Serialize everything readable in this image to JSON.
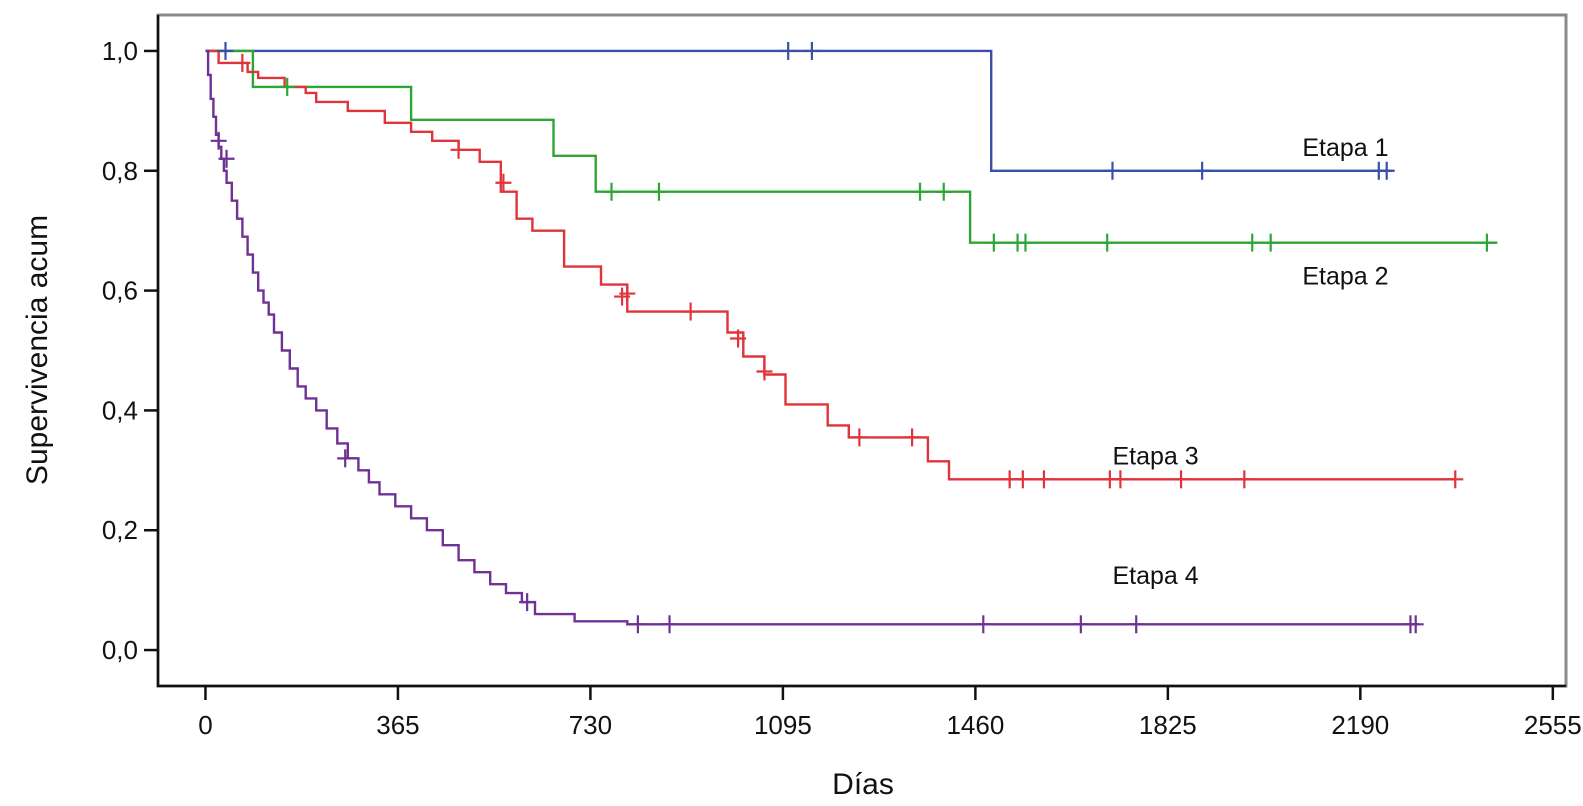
{
  "chart_data": {
    "type": "line",
    "step": true,
    "title": "",
    "xlabel": "Días",
    "ylabel": "Supervivencia acum",
    "xlim": [
      -90,
      2580
    ],
    "ylim": [
      -0.06,
      1.06
    ],
    "xticks": [
      0,
      365,
      730,
      1095,
      1460,
      1825,
      2190,
      2555
    ],
    "xtick_labels": [
      "0",
      "365",
      "730",
      "1095",
      "1460",
      "1825",
      "2190",
      "2555"
    ],
    "yticks": [
      0.0,
      0.2,
      0.4,
      0.6,
      0.8,
      1.0
    ],
    "ytick_labels": [
      "0,0",
      "0,2",
      "0,4",
      "0,6",
      "0,8",
      "1,0"
    ],
    "grid": false,
    "legend": "none",
    "series": [
      {
        "name": "Etapa 1",
        "color": "#3a4fa8",
        "label_at": [
          2080,
          0.84
        ],
        "x": [
          0,
          1490,
          1490,
          2250
        ],
        "y": [
          1.0,
          1.0,
          0.8,
          0.8
        ],
        "censored": [
          [
            38,
            1.0
          ],
          [
            1105,
            1.0
          ],
          [
            1150,
            1.0
          ],
          [
            1720,
            0.8
          ],
          [
            1890,
            0.8
          ],
          [
            2225,
            0.8
          ],
          [
            2240,
            0.8
          ]
        ]
      },
      {
        "name": "Etapa 2",
        "color": "#2ea636",
        "label_at": [
          2080,
          0.625
        ],
        "x": [
          0,
          90,
          90,
          390,
          390,
          660,
          660,
          740,
          740,
          1450,
          1450,
          2450
        ],
        "y": [
          1.0,
          1.0,
          0.94,
          0.94,
          0.885,
          0.885,
          0.825,
          0.825,
          0.765,
          0.765,
          0.68,
          0.68
        ],
        "censored": [
          [
            155,
            0.94
          ],
          [
            770,
            0.765
          ],
          [
            860,
            0.765
          ],
          [
            1355,
            0.765
          ],
          [
            1400,
            0.765
          ],
          [
            1495,
            0.68
          ],
          [
            1540,
            0.68
          ],
          [
            1555,
            0.68
          ],
          [
            1710,
            0.68
          ],
          [
            1985,
            0.68
          ],
          [
            2020,
            0.68
          ],
          [
            2430,
            0.68
          ]
        ]
      },
      {
        "name": "Etapa 3",
        "color": "#e0333a",
        "label_at": [
          1720,
          0.325
        ],
        "x": [
          0,
          25,
          25,
          80,
          80,
          100,
          100,
          150,
          150,
          190,
          190,
          210,
          210,
          270,
          270,
          340,
          340,
          390,
          390,
          430,
          430,
          480,
          480,
          520,
          520,
          560,
          560,
          590,
          590,
          620,
          620,
          680,
          680,
          750,
          750,
          800,
          800,
          990,
          990,
          1020,
          1020,
          1060,
          1060,
          1100,
          1100,
          1180,
          1180,
          1220,
          1220,
          1370,
          1370,
          1410,
          1410,
          2370
        ],
        "y": [
          1.0,
          1.0,
          0.98,
          0.98,
          0.965,
          0.965,
          0.955,
          0.955,
          0.94,
          0.94,
          0.93,
          0.93,
          0.915,
          0.915,
          0.9,
          0.9,
          0.88,
          0.88,
          0.865,
          0.865,
          0.85,
          0.85,
          0.835,
          0.835,
          0.815,
          0.815,
          0.765,
          0.765,
          0.72,
          0.72,
          0.7,
          0.7,
          0.64,
          0.64,
          0.61,
          0.61,
          0.565,
          0.565,
          0.53,
          0.53,
          0.49,
          0.49,
          0.46,
          0.46,
          0.41,
          0.41,
          0.375,
          0.375,
          0.355,
          0.355,
          0.315,
          0.315,
          0.285,
          0.285
        ],
        "censored": [
          [
            70,
            0.98
          ],
          [
            480,
            0.835
          ],
          [
            565,
            0.78
          ],
          [
            790,
            0.59
          ],
          [
            800,
            0.595
          ],
          [
            920,
            0.565
          ],
          [
            1010,
            0.52
          ],
          [
            1060,
            0.465
          ],
          [
            1240,
            0.355
          ],
          [
            1340,
            0.355
          ],
          [
            1525,
            0.285
          ],
          [
            1550,
            0.285
          ],
          [
            1590,
            0.285
          ],
          [
            1715,
            0.285
          ],
          [
            1735,
            0.285
          ],
          [
            1850,
            0.285
          ],
          [
            1970,
            0.285
          ],
          [
            2370,
            0.285
          ]
        ]
      },
      {
        "name": "Etapa 4",
        "color": "#6e3194",
        "label_at": [
          1720,
          0.125
        ],
        "x": [
          0,
          5,
          5,
          10,
          10,
          15,
          15,
          20,
          20,
          25,
          25,
          30,
          30,
          35,
          35,
          40,
          40,
          50,
          50,
          60,
          60,
          70,
          70,
          80,
          80,
          90,
          90,
          100,
          100,
          110,
          110,
          120,
          120,
          130,
          130,
          145,
          145,
          160,
          160,
          175,
          175,
          190,
          190,
          210,
          210,
          230,
          230,
          250,
          250,
          270,
          270,
          290,
          290,
          310,
          310,
          330,
          330,
          360,
          360,
          390,
          390,
          420,
          420,
          450,
          450,
          480,
          480,
          510,
          510,
          540,
          540,
          570,
          570,
          600,
          600,
          625,
          625,
          700,
          700,
          800,
          800,
          2300
        ],
        "y": [
          1.0,
          1.0,
          0.96,
          0.96,
          0.92,
          0.92,
          0.89,
          0.89,
          0.86,
          0.86,
          0.84,
          0.84,
          0.82,
          0.82,
          0.8,
          0.8,
          0.78,
          0.78,
          0.75,
          0.75,
          0.72,
          0.72,
          0.69,
          0.69,
          0.66,
          0.66,
          0.63,
          0.63,
          0.6,
          0.6,
          0.58,
          0.58,
          0.56,
          0.56,
          0.53,
          0.53,
          0.5,
          0.5,
          0.47,
          0.47,
          0.44,
          0.44,
          0.42,
          0.42,
          0.4,
          0.4,
          0.37,
          0.37,
          0.345,
          0.345,
          0.32,
          0.32,
          0.3,
          0.3,
          0.28,
          0.28,
          0.26,
          0.26,
          0.24,
          0.24,
          0.22,
          0.22,
          0.2,
          0.2,
          0.175,
          0.175,
          0.15,
          0.15,
          0.13,
          0.13,
          0.11,
          0.11,
          0.095,
          0.095,
          0.08,
          0.08,
          0.06,
          0.06,
          0.048,
          0.048,
          0.043,
          0.043
        ],
        "censored": [
          [
            25,
            0.85
          ],
          [
            40,
            0.82
          ],
          [
            265,
            0.32
          ],
          [
            610,
            0.08
          ],
          [
            820,
            0.043
          ],
          [
            880,
            0.043
          ],
          [
            1475,
            0.043
          ],
          [
            1660,
            0.043
          ],
          [
            1765,
            0.043
          ],
          [
            2285,
            0.043
          ],
          [
            2295,
            0.043
          ]
        ]
      }
    ]
  }
}
